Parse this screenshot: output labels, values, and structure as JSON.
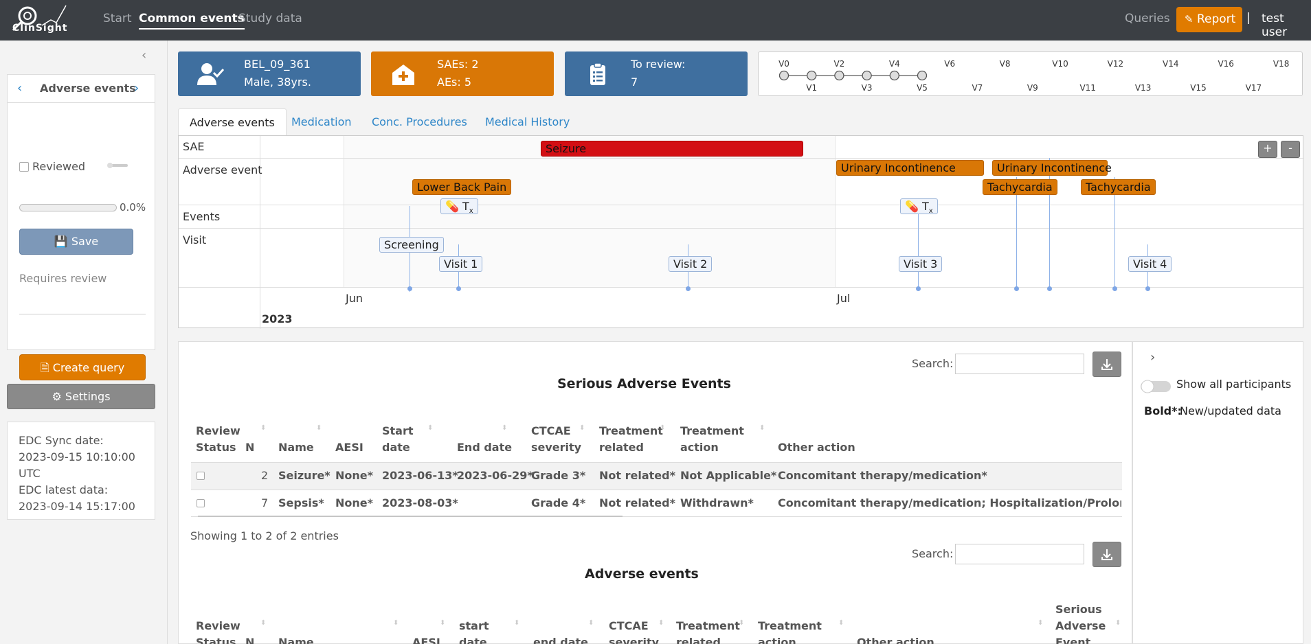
{
  "app": {
    "logo_text": "ClinSight",
    "nav": [
      {
        "label": "Start"
      },
      {
        "label": "Common events"
      },
      {
        "label": "Study data"
      }
    ],
    "queries_label": "Queries",
    "report_label": "Report",
    "separator": "|",
    "user": "test user"
  },
  "sidebar": {
    "title": "Adverse events",
    "reviewed_label": "Reviewed",
    "progress_value": 0.0,
    "progress_label": "0.0%",
    "save_label": "Save",
    "requires_review": "Requires review",
    "create_query_label": "Create query",
    "settings_label": "Settings",
    "sync": {
      "line1": "EDC Sync date:",
      "line2": "2023-09-15 10:10:00",
      "line3": "UTC",
      "line4": "EDC latest data:",
      "line5": "2023-09-14 15:17:00"
    }
  },
  "cards": {
    "participant": {
      "id": "BEL_09_361",
      "info": "Male, 38yrs."
    },
    "events": {
      "saes": "SAEs: 2",
      "aes": "AEs: 5"
    },
    "review": {
      "label": "To review:",
      "count": "7"
    }
  },
  "visits": {
    "top": [
      "V0",
      "V2",
      "V4",
      "V6",
      "V8",
      "V10",
      "V12",
      "V14",
      "V16",
      "V18"
    ],
    "bottom": [
      "V1",
      "V3",
      "V5",
      "V7",
      "V9",
      "V11",
      "V13",
      "V15",
      "V17"
    ],
    "completed_count": 6
  },
  "tabs": [
    {
      "label": "Adverse events"
    },
    {
      "label": "Medication"
    },
    {
      "label": "Conc. Procedures"
    },
    {
      "label": "Medical History"
    }
  ],
  "timeline": {
    "rows": [
      "SAE",
      "Adverse event",
      "Events",
      "Visit"
    ],
    "sae": "Seizure",
    "ae": [
      "Urinary Incontinence",
      "Urinary Incontinence",
      "Lower Back Pain",
      "Tachycardia",
      "Tachycardia"
    ],
    "events_label": "T",
    "events_sub": "x",
    "visits": [
      "Screening",
      "Visit 1",
      "Visit 2",
      "Visit 3",
      "Visit 4"
    ],
    "months": [
      "Jun",
      "Jul"
    ],
    "year": "2023",
    "zoom_in": "+",
    "zoom_out": "-"
  },
  "sae_table": {
    "search_label": "Search:",
    "title": "Serious Adverse Events",
    "headers": [
      [
        "Review",
        "Status"
      ],
      [
        "N"
      ],
      [
        "Name"
      ],
      [
        "AESI"
      ],
      [
        "Start",
        "date"
      ],
      [
        "End date"
      ],
      [
        "CTCAE",
        "severity"
      ],
      [
        "Treatment",
        "related"
      ],
      [
        "Treatment",
        "action"
      ],
      [
        "Other action"
      ]
    ],
    "rows": [
      [
        "2",
        "Seizure*",
        "None*",
        "2023-06-13*",
        "2023-06-29*",
        "Grade 3*",
        "Not related*",
        "Not Applicable*",
        "Concomitant therapy/medication*"
      ],
      [
        "7",
        "Sepsis*",
        "None*",
        "2023-08-03*",
        "",
        "Grade 4*",
        "Not related*",
        "Withdrawn*",
        "Concomitant therapy/medication; Hospitalization/Prolongation"
      ]
    ],
    "showing": "Showing 1 to 2 of 2 entries"
  },
  "ae_table": {
    "search_label": "Search:",
    "title": "Adverse events",
    "headers": [
      [
        "Review",
        "Status"
      ],
      [
        "N"
      ],
      [
        "Name"
      ],
      [
        "AESI"
      ],
      [
        "start",
        "date"
      ],
      [
        "end date"
      ],
      [
        "CTCAE",
        "severity"
      ],
      [
        "Treatment",
        "related"
      ],
      [
        "Treatment",
        "action"
      ],
      [
        "Other action"
      ],
      [
        "Serious",
        "Adverse",
        "Event"
      ]
    ]
  },
  "right_panel": {
    "show_all": "Show all participants",
    "legend_bold": "Bold*:",
    "legend_text": "New/updated data"
  },
  "colors": {
    "navbar": "#3b3f44",
    "blue_card": "#3f6f9f",
    "orange": "#d97706",
    "sae_red": "#d30f14",
    "link": "#2e86c8"
  }
}
